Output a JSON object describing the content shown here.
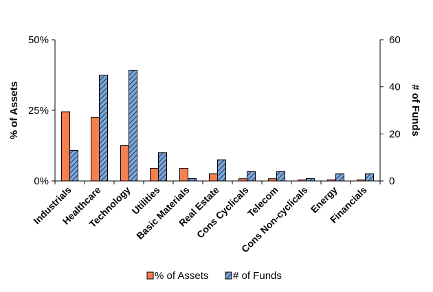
{
  "chart_data": {
    "type": "bar",
    "categories": [
      "Industrials",
      "Healthcare",
      "Technology",
      "Utilities",
      "Basic Materials",
      "Real Estate",
      "Cons Cyclicals",
      "Telecom",
      "Cons Non-cyclicals",
      "Energy",
      "Financials"
    ],
    "series": [
      {
        "name": "% of Assets",
        "axis": "left",
        "color": "#f4804f",
        "values": [
          24.5,
          22.5,
          12.5,
          4.5,
          4.5,
          2.5,
          0.8,
          0.8,
          0.4,
          0.4,
          0.4
        ]
      },
      {
        "name": "# of Funds",
        "axis": "right",
        "color": "#7fa7d8",
        "pattern": "diagonal-hatch",
        "values": [
          13,
          45,
          47,
          12,
          1,
          9,
          4,
          4,
          1,
          3,
          3
        ]
      }
    ],
    "y_left": {
      "label": "% of Assets",
      "min": 0,
      "max": 50,
      "ticks": [
        0,
        25,
        50
      ],
      "tick_labels": [
        "0%",
        "25%",
        "50%"
      ]
    },
    "y_right": {
      "label": "# of Funds",
      "min": 0,
      "max": 60,
      "ticks": [
        0,
        20,
        40,
        60
      ],
      "tick_labels": [
        "0",
        "20",
        "40",
        "60"
      ]
    },
    "grid": false,
    "legend_position": "bottom"
  }
}
